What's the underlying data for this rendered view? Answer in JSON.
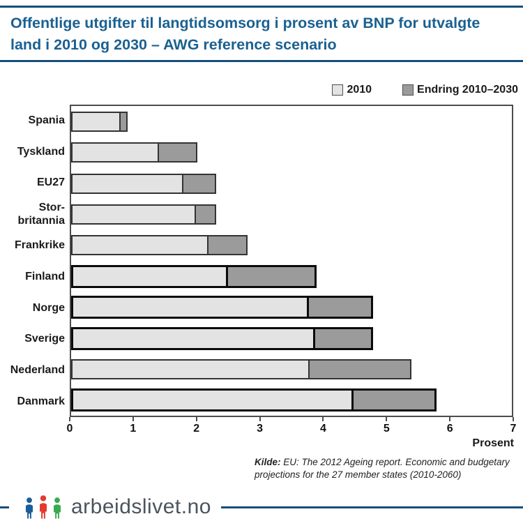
{
  "header": {
    "title": "Offentlige utgifter til langtidsomsorg i prosent av BNP for utvalgte land i 2010 og 2030 – AWG reference scenario"
  },
  "legend": [
    {
      "label": "2010",
      "color": "#e3e3e3"
    },
    {
      "label": "Endring 2010–2030",
      "color": "#9b9b9b"
    }
  ],
  "chart_data": {
    "type": "bar",
    "orientation": "horizontal",
    "title": "Offentlige utgifter til langtidsomsorg i prosent av BNP for utvalgte land i 2010 og 2030 – AWG reference scenario",
    "categories": [
      "Spania",
      "Tyskland",
      "EU27",
      "Stor-\nbritannia",
      "Frankrike",
      "Finland",
      "Norge",
      "Sverige",
      "Nederland",
      "Danmark"
    ],
    "series": [
      {
        "name": "2010",
        "color": "#e3e3e3",
        "values": [
          0.8,
          1.4,
          1.8,
          2.0,
          2.2,
          2.5,
          3.8,
          3.9,
          3.8,
          4.5
        ]
      },
      {
        "name": "Endring 2010–2030",
        "color": "#9b9b9b",
        "values": [
          0.1,
          0.6,
          0.5,
          0.3,
          0.6,
          1.4,
          1.0,
          0.9,
          1.6,
          1.3
        ]
      }
    ],
    "totals_2030": [
      0.9,
      2.0,
      2.3,
      2.3,
      2.8,
      3.9,
      4.8,
      4.8,
      5.4,
      5.8
    ],
    "highlighted": [
      "Finland",
      "Norge",
      "Sverige",
      "Danmark"
    ],
    "xlabel": "Prosent",
    "xlim": [
      0,
      7
    ],
    "xticks": [
      0,
      1,
      2,
      3,
      4,
      5,
      6,
      7
    ],
    "grid": false,
    "legend_position": "top-right"
  },
  "source": {
    "prefix": "Kilde:",
    "line1": "EU: The 2012 Ageing report. Economic and budgetary",
    "line2": "projections for the 27 member states (2010-2060)"
  },
  "brand": {
    "name": "arbeidslivet.no"
  },
  "colors": {
    "accent_blue": "#134e7a",
    "title_blue": "#1a6191",
    "bar_light": "#e3e3e3",
    "bar_dark": "#9b9b9b",
    "logo_blue": "#1c5d99",
    "logo_red": "#e23b2e",
    "logo_green": "#3aaa4f"
  }
}
